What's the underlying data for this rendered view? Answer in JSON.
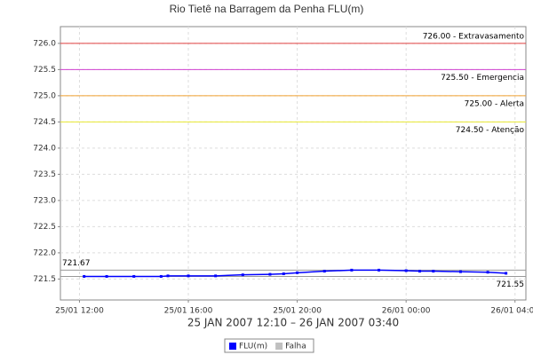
{
  "chart_data": {
    "type": "line",
    "title": "Rio Tietê na Barragem da Penha FLU(m)",
    "x_label": "25 JAN 2007 12:10 – 26 JAN 2007 03:40",
    "x": [
      12.17,
      13,
      14,
      15,
      15.25,
      16,
      17,
      18,
      19,
      19.5,
      20,
      21,
      22,
      23,
      24,
      24.5,
      25,
      26,
      27,
      27.67
    ],
    "series": [
      {
        "name": "FLU(m)",
        "color": "#0000ff",
        "values": [
          721.55,
          721.55,
          721.55,
          721.55,
          721.56,
          721.56,
          721.56,
          721.58,
          721.59,
          721.6,
          721.62,
          721.65,
          721.67,
          721.67,
          721.66,
          721.65,
          721.65,
          721.64,
          721.63,
          721.61
        ]
      },
      {
        "name": "Falha",
        "color": "#c0c0c0",
        "values": [
          null,
          null,
          null,
          null,
          null,
          null,
          null,
          null,
          null,
          null,
          null,
          null,
          null,
          null,
          null,
          null,
          null,
          null,
          null,
          null
        ]
      }
    ],
    "xlim": [
      11.3,
      28.4
    ],
    "xticks": [
      {
        "value": 12,
        "label": "25/01 12:00"
      },
      {
        "value": 16,
        "label": "25/01 16:00"
      },
      {
        "value": 20,
        "label": "25/01 20:00"
      },
      {
        "value": 24,
        "label": "26/01 00:00"
      },
      {
        "value": 28,
        "label": "26/01 04:00"
      }
    ],
    "ylim": [
      721.1,
      726.32
    ],
    "yticks": [
      {
        "value": 721.5,
        "label": "721.5"
      },
      {
        "value": 722,
        "label": "722.0"
      },
      {
        "value": 722.5,
        "label": "722.5"
      },
      {
        "value": 723,
        "label": "723.0"
      },
      {
        "value": 723.5,
        "label": "723.5"
      },
      {
        "value": 724,
        "label": "724.0"
      },
      {
        "value": 724.5,
        "label": "724.5"
      },
      {
        "value": 725,
        "label": "725.0"
      },
      {
        "value": 725.5,
        "label": "725.5"
      },
      {
        "value": 726,
        "label": "726.0"
      }
    ],
    "reference_lines": [
      {
        "value": 726,
        "label": "726.00 - Extravasamento",
        "color": "#e04040",
        "side": "right-above"
      },
      {
        "value": 725.5,
        "label": "725.50 - Emergencia",
        "color": "#d040d0",
        "side": "right-below"
      },
      {
        "value": 725,
        "label": "725.00 - Alerta",
        "color": "#f0a030",
        "side": "right-below"
      },
      {
        "value": 724.5,
        "label": "724.50 - Atenção",
        "color": "#e8e830",
        "side": "right-below"
      },
      {
        "value": 721.67,
        "label": "721.67",
        "color": "#999999",
        "side": "left-above"
      },
      {
        "value": 721.55,
        "label": "721.55",
        "color": "#999999",
        "side": "right-below"
      }
    ],
    "grid": true,
    "legend": "bottom"
  }
}
